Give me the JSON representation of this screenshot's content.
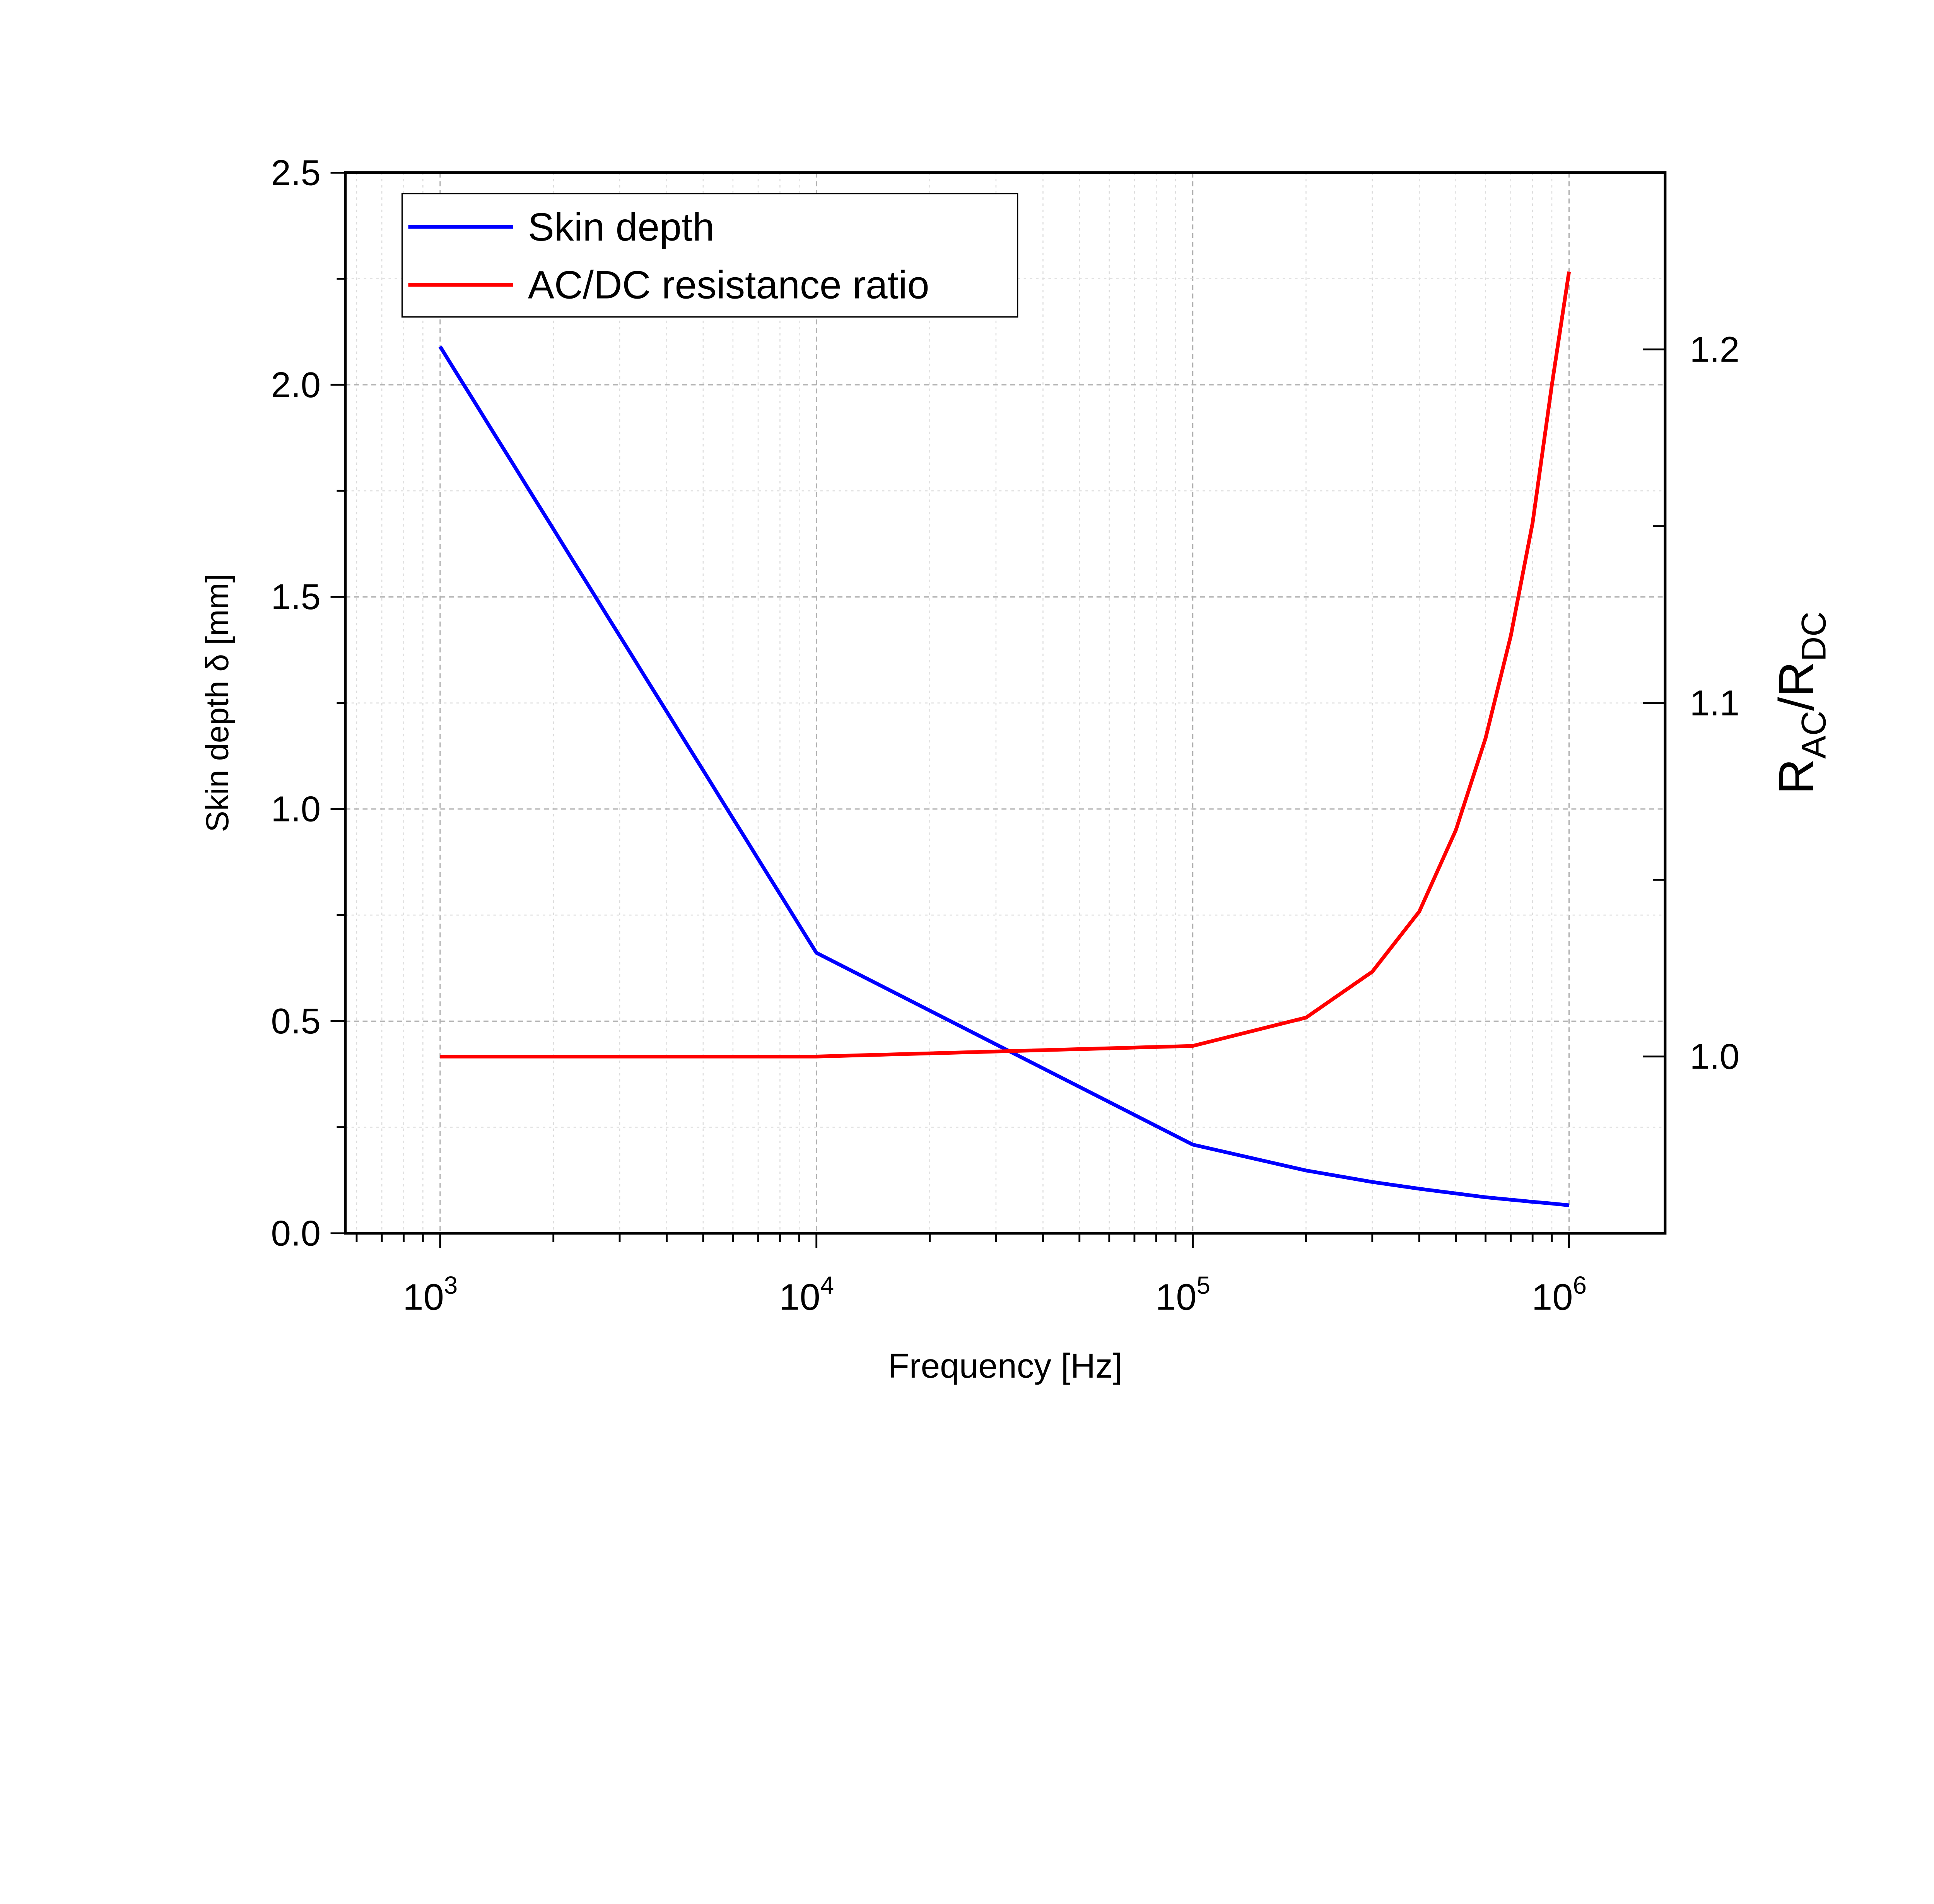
{
  "chart_data": {
    "type": "line",
    "title": "",
    "xlabel": "Frequency [Hz]",
    "ylabel_left": "Skin depth δ [mm]",
    "ylabel_right": {
      "base": "R",
      "sub1": "AC",
      "slash": "/R",
      "sub2": "DC"
    },
    "x_scale": "log",
    "xlim": [
      560,
      1800000
    ],
    "ylim_left": [
      0,
      2.5
    ],
    "ylim_right": [
      0.95,
      1.25
    ],
    "x_ticks": [
      {
        "value": 1000,
        "base": "10",
        "exp": "3"
      },
      {
        "value": 10000,
        "base": "10",
        "exp": "4"
      },
      {
        "value": 100000,
        "base": "10",
        "exp": "5"
      },
      {
        "value": 1000000,
        "base": "10",
        "exp": "6"
      }
    ],
    "y_ticks_left": [
      "0.0",
      "0.5",
      "1.0",
      "1.5",
      "2.0",
      "2.5"
    ],
    "y_ticks_right": [
      "1.0",
      "1.1",
      "1.2"
    ],
    "grid": true,
    "legend_position": "top-left",
    "x": [
      1000,
      10000,
      100000,
      200000,
      300000,
      400000,
      500000,
      600000,
      700000,
      800000,
      900000,
      1000000
    ],
    "series": [
      {
        "name": "Skin depth",
        "axis": "left",
        "color": "#0000ff",
        "values": [
          2.09,
          0.661,
          0.209,
          0.148,
          0.121,
          0.105,
          0.094,
          0.085,
          0.079,
          0.074,
          0.07,
          0.066
        ]
      },
      {
        "name": "AC/DC resistance ratio",
        "axis": "right",
        "color": "#ff0000",
        "values": [
          1.0,
          1.0,
          1.003,
          1.011,
          1.024,
          1.041,
          1.064,
          1.09,
          1.119,
          1.151,
          1.19,
          1.222
        ]
      }
    ]
  }
}
